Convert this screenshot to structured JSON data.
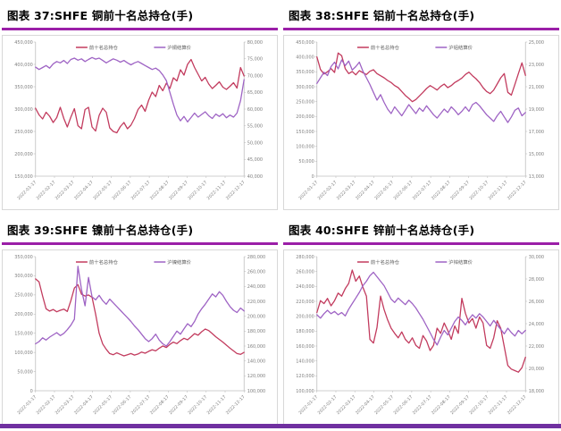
{
  "page": {
    "title_rule_color": "#9B1FA8",
    "footer_bar_color": "#7030A0",
    "axis_color": "#BFBFBF",
    "tick_label_color": "#7F7F7F",
    "legend_text_color": "#595959"
  },
  "chart_data": [
    {
      "type": "line",
      "title": "图表 37:SHFE 铜前十名总持仓(手)",
      "legend": [
        {
          "label": "前十名总持仓",
          "color": "#C23B5E"
        },
        {
          "label": "沪铜结算价",
          "color": "#9E63C4"
        }
      ],
      "left_axis": {
        "min": 150000,
        "max": 450000,
        "ticks": [
          "450,000",
          "400,000",
          "350,000",
          "300,000",
          "250,000",
          "200,000",
          "150,000"
        ]
      },
      "right_axis": {
        "min": 40000,
        "max": 80000,
        "ticks": [
          "80,000",
          "75,000",
          "70,000",
          "65,000",
          "60,000",
          "55,000",
          "50,000",
          "45,000",
          "40,000"
        ]
      },
      "x_labels": [
        "2022-01-17",
        "2022-02-17",
        "2022-03-17",
        "2022-04-17",
        "2022-05-17",
        "2022-06-17",
        "2022-07-17",
        "2022-08-17",
        "2022-09-17",
        "2022-10-17",
        "2022-11-17",
        "2022-12-17"
      ],
      "series": [
        {
          "name": "前十名总持仓",
          "axis": "left",
          "color": "#C23B5E",
          "values": [
            302000,
            287000,
            278000,
            293000,
            284000,
            270000,
            281000,
            304000,
            279000,
            260000,
            282000,
            301000,
            263000,
            256000,
            299000,
            304000,
            260000,
            251000,
            286000,
            302000,
            293000,
            258000,
            250000,
            247000,
            261000,
            270000,
            256000,
            264000,
            279000,
            299000,
            309000,
            295000,
            320000,
            338000,
            328000,
            353000,
            341000,
            358000,
            346000,
            370000,
            363000,
            388000,
            376000,
            400000,
            411000,
            393000,
            378000,
            363000,
            371000,
            356000,
            346000,
            353000,
            361000,
            349000,
            344000,
            351000,
            359000,
            347000,
            393000,
            374000
          ]
        },
        {
          "name": "沪铜结算价",
          "axis": "right",
          "color": "#9E63C4",
          "values": [
            72500,
            71800,
            72400,
            73000,
            72200,
            73500,
            74200,
            73800,
            74500,
            73600,
            74800,
            75200,
            74600,
            75000,
            74200,
            74800,
            75400,
            74900,
            75200,
            74500,
            73800,
            74400,
            75000,
            74600,
            74000,
            74500,
            73800,
            73200,
            73800,
            74200,
            73600,
            73000,
            72400,
            71800,
            72200,
            71500,
            70200,
            68500,
            65000,
            61500,
            58200,
            56500,
            57800,
            56200,
            57500,
            58800,
            57600,
            58400,
            59200,
            58000,
            57200,
            58500,
            57800,
            58600,
            57400,
            58200,
            57600,
            58800,
            62500,
            68800
          ]
        }
      ]
    },
    {
      "type": "line",
      "title": "图表 38:SHFE 铝前十名总持仓(手)",
      "legend": [
        {
          "label": "前十名总持仓",
          "color": "#C23B5E"
        },
        {
          "label": "沪铝结算价",
          "color": "#9E63C4"
        }
      ],
      "left_axis": {
        "min": 0,
        "max": 450000,
        "ticks": [
          "450,000",
          "400,000",
          "350,000",
          "300,000",
          "250,000",
          "200,000",
          "150,000",
          "100,000",
          "50,000",
          "0"
        ]
      },
      "right_axis": {
        "min": 13000,
        "max": 25000,
        "ticks": [
          "25,000",
          "23,000",
          "21,000",
          "19,000",
          "17,000",
          "15,000",
          "13,000"
        ]
      },
      "x_labels": [
        "2022-01-17",
        "2022-02-17",
        "2022-03-17",
        "2022-04-17",
        "2022-05-17",
        "2022-06-17",
        "2022-07-17",
        "2022-08-17",
        "2022-09-17",
        "2022-10-17",
        "2022-11-17",
        "2022-12-17"
      ],
      "series": [
        {
          "name": "前十名总持仓",
          "axis": "left",
          "color": "#C23B5E",
          "values": [
            400000,
            358000,
            343000,
            350000,
            361000,
            348000,
            413000,
            404000,
            361000,
            344000,
            351000,
            340000,
            354000,
            347000,
            341000,
            352000,
            357000,
            344000,
            337000,
            330000,
            321000,
            314000,
            304000,
            297000,
            284000,
            271000,
            261000,
            250000,
            257000,
            269000,
            281000,
            294000,
            304000,
            297000,
            289000,
            301000,
            309000,
            297000,
            304000,
            314000,
            321000,
            329000,
            341000,
            349000,
            337000,
            327000,
            314000,
            297000,
            284000,
            277000,
            289000,
            309000,
            330000,
            344000,
            281000,
            272000,
            308000,
            344000,
            380000,
            338000
          ]
        },
        {
          "name": "沪铝结算价",
          "axis": "right",
          "color": "#9E63C4",
          "values": [
            21300,
            21800,
            22300,
            22000,
            22800,
            23200,
            22600,
            23400,
            22900,
            23300,
            22500,
            22800,
            23200,
            22400,
            21800,
            21200,
            20500,
            19800,
            20300,
            19600,
            19000,
            18600,
            19200,
            18800,
            18400,
            18900,
            19400,
            19000,
            18600,
            19100,
            18800,
            19300,
            18900,
            18500,
            18200,
            18600,
            19000,
            18700,
            19200,
            18900,
            18500,
            18800,
            19200,
            18800,
            19400,
            19600,
            19300,
            18900,
            18500,
            18200,
            17900,
            18400,
            18800,
            18300,
            17800,
            18300,
            18900,
            19100,
            18400,
            18700
          ]
        }
      ]
    },
    {
      "type": "line",
      "title": "图表 39:SHFE 镍前十名总持仓(手)",
      "legend": [
        {
          "label": "前十名总持仓",
          "color": "#C23B5E"
        },
        {
          "label": "沪镍结算价",
          "color": "#9E63C4"
        }
      ],
      "left_axis": {
        "min": 0,
        "max": 350000,
        "ticks": [
          "350,000",
          "300,000",
          "250,000",
          "200,000",
          "150,000",
          "100,000",
          "50,000",
          "0"
        ]
      },
      "right_axis": {
        "min": 100000,
        "max": 280000,
        "ticks": [
          "280,000",
          "260,000",
          "240,000",
          "220,000",
          "200,000",
          "180,000",
          "160,000",
          "140,000",
          "120,000",
          "100,000"
        ]
      },
      "x_labels": [
        "2022-01-17",
        "2022-02-17",
        "2022-03-17",
        "2022-04-17",
        "2022-05-17",
        "2022-06-17",
        "2022-07-17",
        "2022-08-17",
        "2022-09-17",
        "2022-10-17",
        "2022-11-17",
        "2022-12-17"
      ],
      "series": [
        {
          "name": "前十名总持仓",
          "axis": "left",
          "color": "#C23B5E",
          "values": [
            292000,
            284000,
            247000,
            214000,
            208000,
            212000,
            206000,
            210000,
            213000,
            207000,
            235000,
            268000,
            277000,
            252000,
            247000,
            250000,
            244000,
            200000,
            150000,
            122000,
            108000,
            97000,
            94000,
            99000,
            95000,
            91000,
            94000,
            97000,
            93000,
            96000,
            101000,
            98000,
            103000,
            107000,
            104000,
            111000,
            117000,
            113000,
            121000,
            127000,
            123000,
            131000,
            137000,
            133000,
            141000,
            149000,
            145000,
            154000,
            161000,
            157000,
            149000,
            141000,
            134000,
            127000,
            119000,
            111000,
            104000,
            97000,
            95000,
            100000
          ]
        },
        {
          "name": "沪镍结算价",
          "axis": "right",
          "color": "#9E63C4",
          "values": [
            163000,
            166000,
            171000,
            168000,
            172000,
            175000,
            178000,
            174000,
            177000,
            182000,
            188000,
            196000,
            267000,
            236000,
            214000,
            252000,
            226000,
            222000,
            228000,
            221000,
            216000,
            223000,
            218000,
            213000,
            208000,
            203000,
            198000,
            193000,
            187000,
            182000,
            176000,
            170000,
            166000,
            170000,
            176000,
            168000,
            163000,
            160000,
            166000,
            173000,
            180000,
            176000,
            183000,
            190000,
            186000,
            193000,
            203000,
            210000,
            216000,
            223000,
            230000,
            226000,
            233000,
            228000,
            220000,
            213000,
            208000,
            205000,
            211000,
            207000
          ]
        }
      ]
    },
    {
      "type": "line",
      "title": "图表 40:SHFE 锌前十名总持仓(手)",
      "legend": [
        {
          "label": "前十名总持仓",
          "color": "#C23B5E"
        },
        {
          "label": "沪锌结算价",
          "color": "#9E63C4"
        }
      ],
      "left_axis": {
        "min": 100000,
        "max": 280000,
        "ticks": [
          "280,000",
          "260,000",
          "240,000",
          "220,000",
          "200,000",
          "180,000",
          "160,000",
          "140,000",
          "120,000",
          "100,000"
        ]
      },
      "right_axis": {
        "min": 18000,
        "max": 30000,
        "ticks": [
          "30,000",
          "28,000",
          "26,000",
          "24,000",
          "22,000",
          "20,000",
          "18,000"
        ]
      },
      "x_labels": [
        "2022-01-17",
        "2022-02-17",
        "2022-03-17",
        "2022-04-17",
        "2022-05-17",
        "2022-06-17",
        "2022-07-17",
        "2022-08-17",
        "2022-09-17",
        "2022-10-17",
        "2022-11-17",
        "2022-12-17"
      ],
      "series": [
        {
          "name": "前十名总持仓",
          "axis": "left",
          "color": "#C23B5E",
          "values": [
            205000,
            221000,
            217000,
            224000,
            214000,
            221000,
            231000,
            227000,
            237000,
            244000,
            262000,
            247000,
            254000,
            239000,
            227000,
            169000,
            164000,
            185000,
            227000,
            209000,
            195000,
            184000,
            177000,
            171000,
            179000,
            169000,
            164000,
            171000,
            161000,
            157000,
            174000,
            167000,
            154000,
            161000,
            184000,
            177000,
            191000,
            181000,
            169000,
            187000,
            177000,
            224000,
            204000,
            191000,
            197000,
            184000,
            199000,
            191000,
            161000,
            157000,
            171000,
            194000,
            184000,
            159000,
            134000,
            129000,
            127000,
            125000,
            131000,
            145000
          ]
        },
        {
          "name": "沪锌结算价",
          "axis": "right",
          "color": "#9E63C4",
          "values": [
            24800,
            24500,
            24900,
            25200,
            24900,
            25100,
            24800,
            25000,
            24700,
            25300,
            25800,
            26300,
            26800,
            27400,
            27800,
            28300,
            28600,
            28200,
            27800,
            27400,
            26800,
            26200,
            25900,
            26300,
            26000,
            25700,
            26100,
            25800,
            25400,
            24900,
            24400,
            23800,
            23200,
            22600,
            22100,
            22800,
            23400,
            23000,
            23600,
            24200,
            24600,
            24300,
            23900,
            24400,
            24800,
            24500,
            24900,
            24600,
            24200,
            23800,
            24300,
            23900,
            23500,
            23100,
            23600,
            23200,
            22900,
            23400,
            23100,
            23400
          ]
        }
      ]
    }
  ]
}
